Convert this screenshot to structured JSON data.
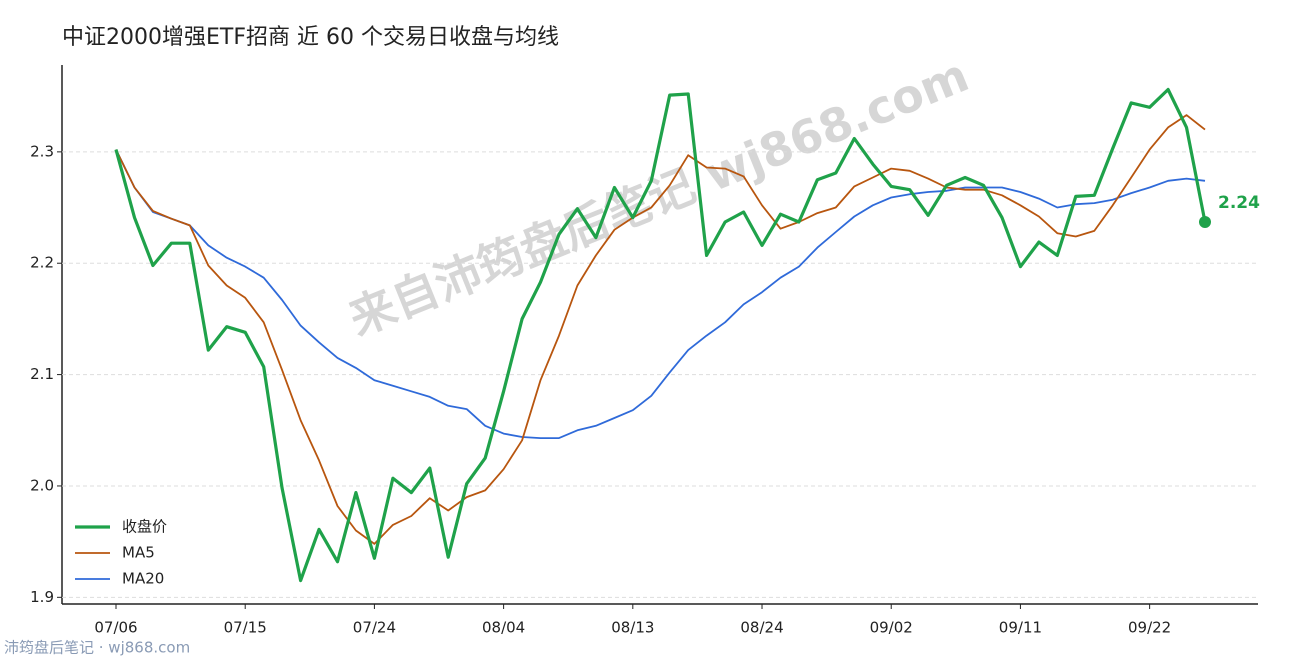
{
  "chart_data": {
    "type": "line",
    "title": "中证2000增强ETF招商 近 60 个交易日收盘与均线",
    "watermark": "来自沛筠盘后笔记 wj868.com",
    "footer": "沛筠盘后笔记 · wj868.com",
    "categories": [
      "07/06",
      null,
      null,
      null,
      null,
      null,
      null,
      "07/15",
      null,
      null,
      null,
      null,
      null,
      null,
      "07/24",
      null,
      null,
      null,
      null,
      null,
      null,
      "08/04",
      null,
      null,
      null,
      null,
      null,
      null,
      "08/13",
      null,
      null,
      null,
      null,
      null,
      null,
      "08/24",
      null,
      null,
      null,
      null,
      null,
      null,
      "09/02",
      null,
      null,
      null,
      null,
      null,
      null,
      "09/11",
      null,
      null,
      null,
      null,
      null,
      null,
      "09/22",
      null,
      null,
      null
    ],
    "ylim": [
      1.894,
      2.378
    ],
    "yticks": [
      {
        "value": 1.9,
        "label": "1.9"
      },
      {
        "value": 2.0,
        "label": "2.0"
      },
      {
        "value": 2.1,
        "label": "2.1"
      },
      {
        "value": 2.2,
        "label": "2.2"
      },
      {
        "value": 2.3,
        "label": "2.3"
      }
    ],
    "grid": true,
    "legend": "lower left",
    "series": [
      {
        "name": "收盘价",
        "color": "#1fa24a",
        "width": 3.2,
        "values": [
          2.302,
          2.241,
          2.198,
          2.218,
          2.218,
          2.122,
          2.143,
          2.138,
          2.107,
          1.998,
          1.915,
          1.961,
          1.932,
          1.994,
          1.935,
          2.007,
          1.994,
          2.016,
          1.936,
          2.002,
          2.025,
          2.085,
          2.15,
          2.183,
          2.226,
          2.249,
          2.223,
          2.268,
          2.241,
          2.274,
          2.351,
          2.352,
          2.207,
          2.237,
          2.246,
          2.216,
          2.244,
          2.237,
          2.275,
          2.281,
          2.312,
          2.289,
          2.269,
          2.266,
          2.243,
          2.27,
          2.277,
          2.27,
          2.241,
          2.197,
          2.219,
          2.207,
          2.26,
          2.261,
          2.303,
          2.344,
          2.34,
          2.356,
          2.322,
          2.237
        ],
        "value_labels": [
          null,
          null,
          null,
          null,
          null,
          null,
          null,
          null,
          null,
          null,
          null,
          null,
          null,
          null,
          null,
          null,
          null,
          null,
          null,
          null,
          null,
          null,
          null,
          null,
          null,
          null,
          null,
          null,
          null,
          null,
          null,
          null,
          null,
          null,
          null,
          null,
          null,
          null,
          null,
          null,
          null,
          null,
          null,
          null,
          null,
          null,
          null,
          null,
          null,
          null,
          null,
          null,
          null,
          null,
          null,
          null,
          null,
          null,
          null,
          "2.24"
        ]
      },
      {
        "name": "MA5",
        "color": "#b8560f",
        "width": 1.8,
        "values": [
          2.302,
          2.268,
          2.247,
          2.24,
          2.234,
          2.198,
          2.18,
          2.169,
          2.147,
          2.104,
          2.059,
          2.023,
          1.982,
          1.96,
          1.948,
          1.965,
          1.973,
          1.989,
          1.978,
          1.99,
          1.996,
          2.015,
          2.041,
          2.095,
          2.135,
          2.18,
          2.207,
          2.23,
          2.241,
          2.25,
          2.27,
          2.297,
          2.286,
          2.285,
          2.278,
          2.252,
          2.231,
          2.237,
          2.245,
          2.25,
          2.269,
          2.277,
          2.285,
          2.283,
          2.276,
          2.268,
          2.266,
          2.266,
          2.261,
          2.252,
          2.242,
          2.227,
          2.224,
          2.229,
          2.252,
          2.277,
          2.302,
          2.322,
          2.333,
          2.32
        ]
      },
      {
        "name": "MA20",
        "color": "#2f6ad9",
        "width": 1.8,
        "values": [
          2.302,
          2.268,
          2.246,
          2.24,
          2.234,
          2.216,
          2.205,
          2.197,
          2.187,
          2.167,
          2.144,
          2.129,
          2.115,
          2.106,
          2.095,
          2.09,
          2.085,
          2.08,
          2.072,
          2.069,
          2.054,
          2.047,
          2.044,
          2.043,
          2.043,
          2.05,
          2.054,
          2.061,
          2.068,
          2.081,
          2.102,
          2.122,
          2.135,
          2.147,
          2.163,
          2.174,
          2.187,
          2.197,
          2.214,
          2.228,
          2.242,
          2.252,
          2.259,
          2.262,
          2.264,
          2.265,
          2.268,
          2.268,
          2.268,
          2.264,
          2.258,
          2.25,
          2.253,
          2.254,
          2.257,
          2.263,
          2.268,
          2.274,
          2.276,
          2.274
        ]
      }
    ]
  }
}
